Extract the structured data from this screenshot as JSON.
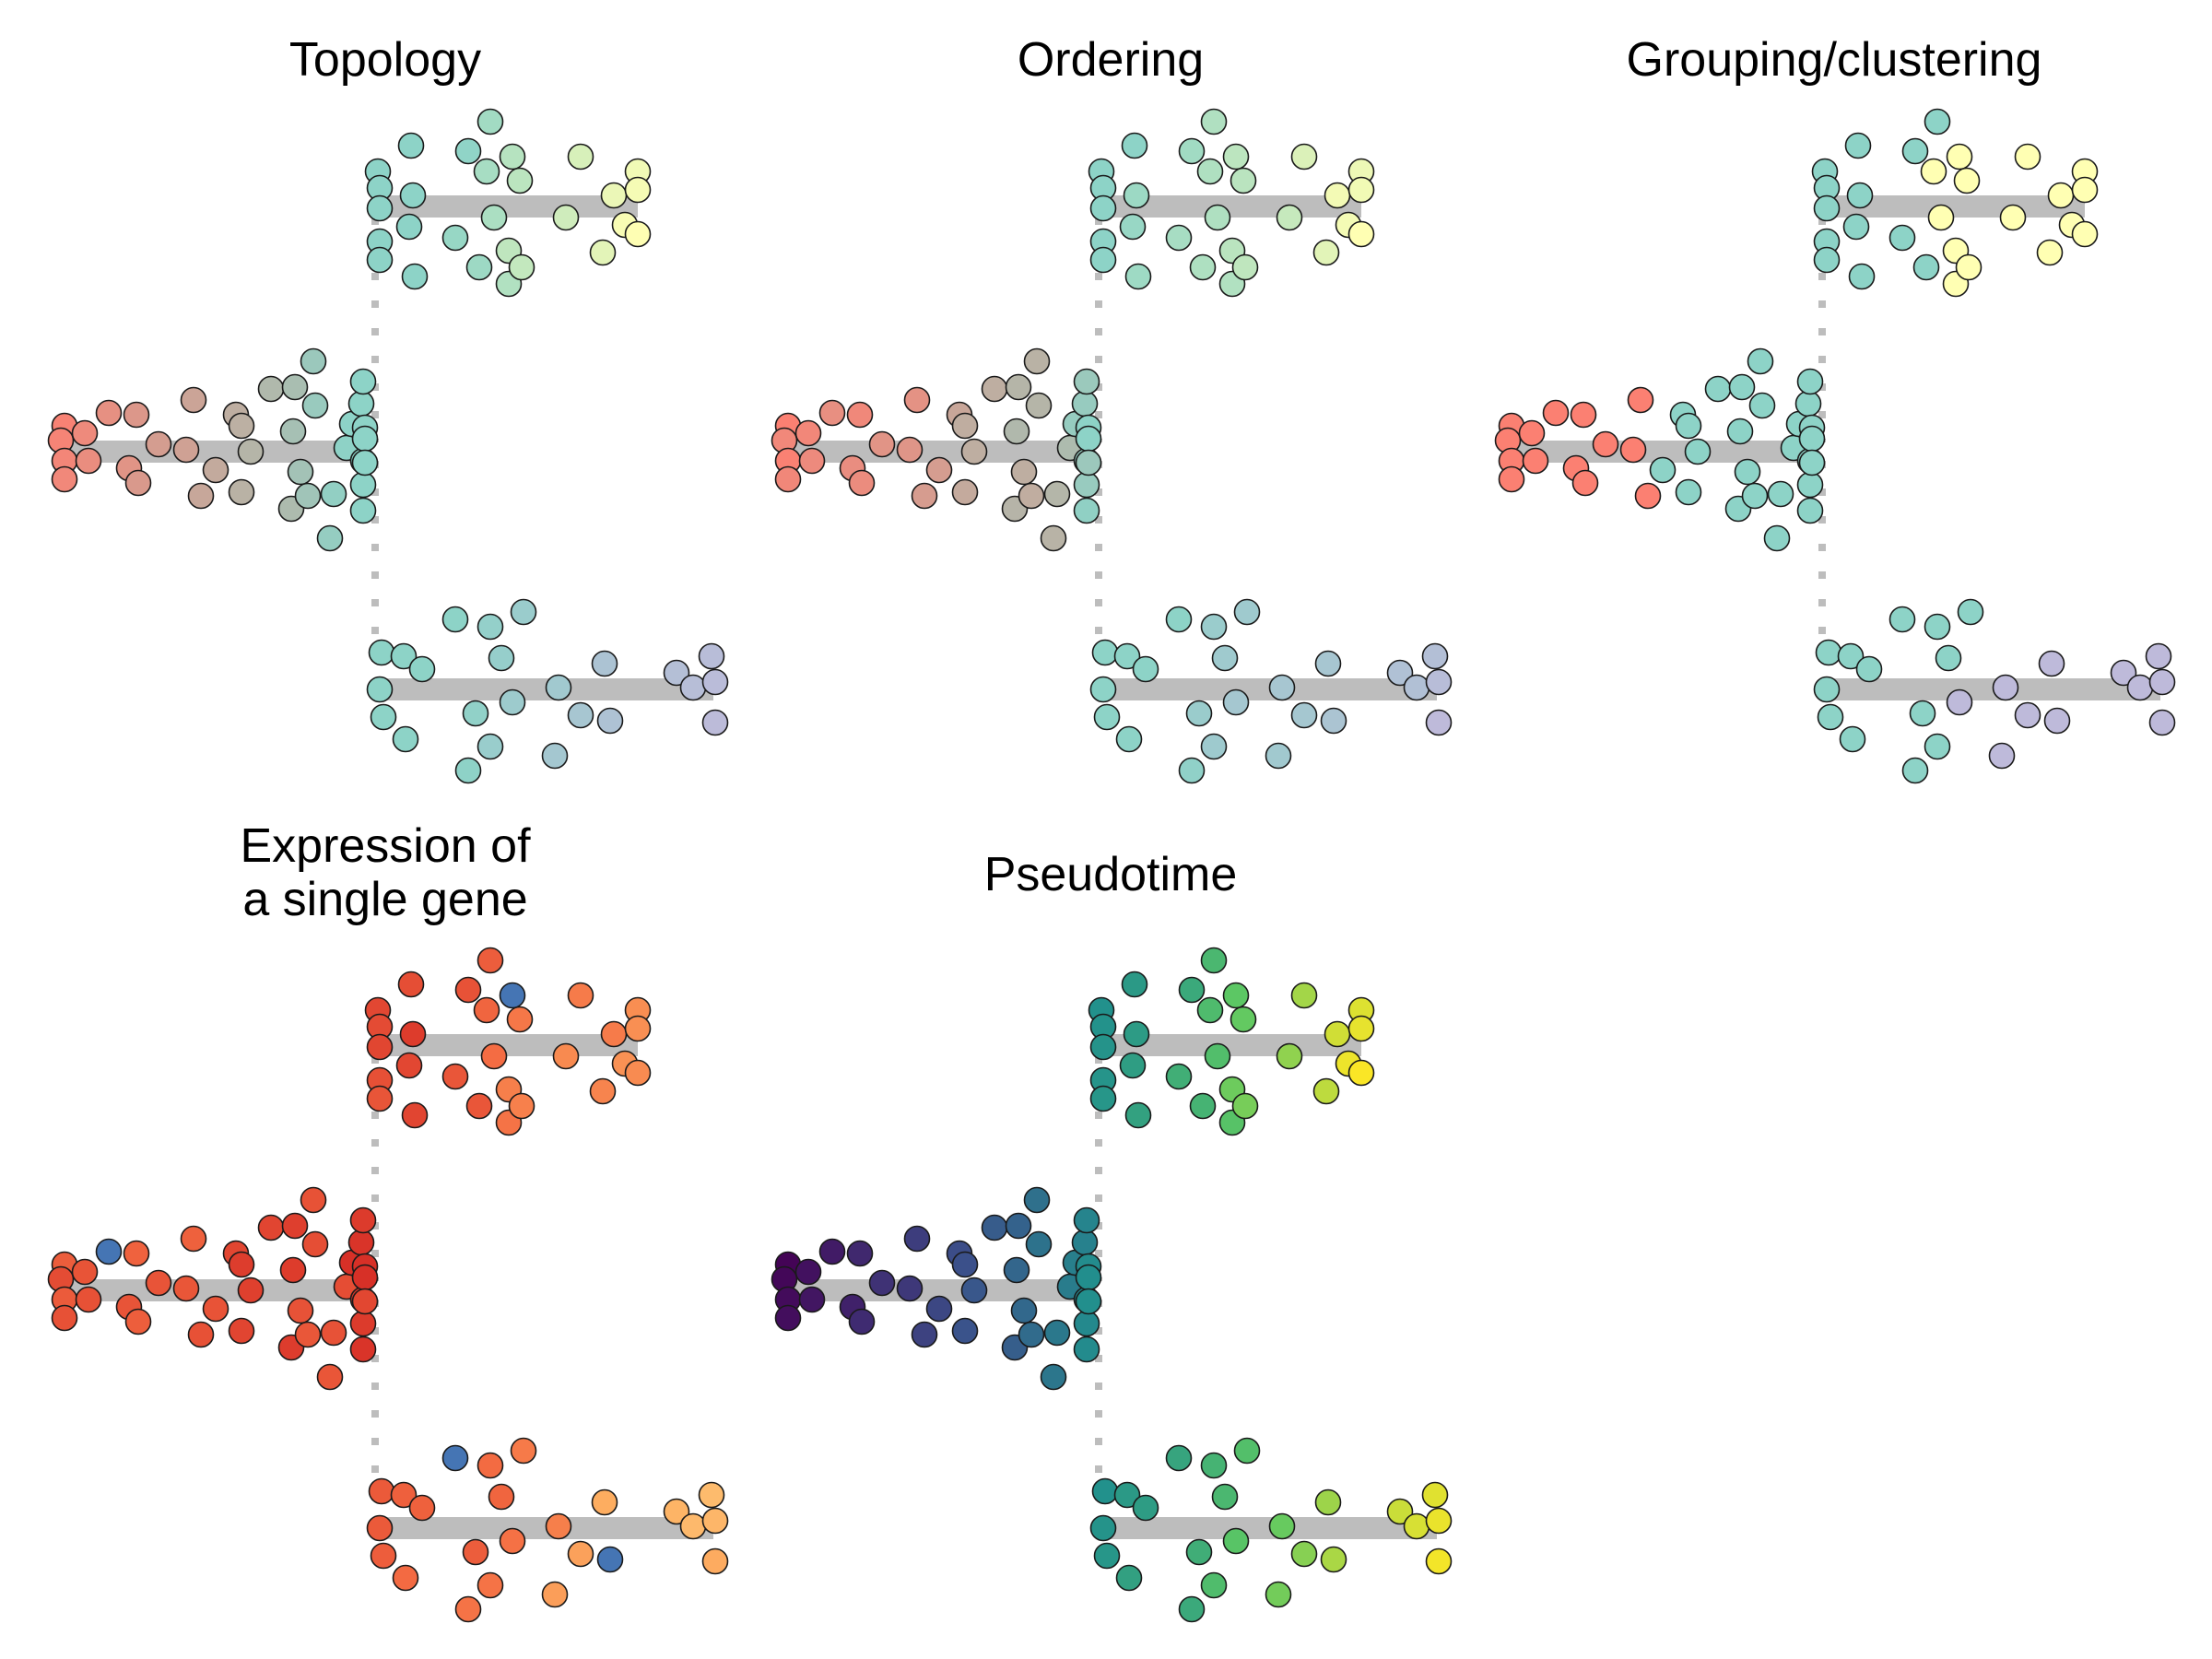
{
  "panels": [
    {
      "title_lines": [
        "Topology"
      ],
      "coloring": "topology"
    },
    {
      "title_lines": [
        "Ordering"
      ],
      "coloring": "ordering"
    },
    {
      "title_lines": [
        "Grouping/clustering"
      ],
      "coloring": "grouping"
    },
    {
      "title_lines": [
        "Expression of",
        "a single gene"
      ],
      "coloring": "expression"
    },
    {
      "title_lines": [
        "Pseudotime"
      ],
      "coloring": "pseudotime"
    }
  ],
  "colors": {
    "backbone": "#bdbdbd",
    "topology": {
      "start": "#fb8072",
      "branch_point": "#8dd3c7",
      "top_end": "#ffffb3",
      "bottom_end": "#bebada"
    },
    "grouping": {
      "start": "#fb8072",
      "mid": "#8dd3c7",
      "top": "#ffffb3",
      "bottom": "#bebada"
    },
    "expression": {
      "low": "#4575b4",
      "mid": "#fee090",
      "high": "#d73027"
    },
    "pseudotime": [
      "#440154",
      "#3b528b",
      "#21908d",
      "#5dc863",
      "#fde725"
    ]
  }
}
